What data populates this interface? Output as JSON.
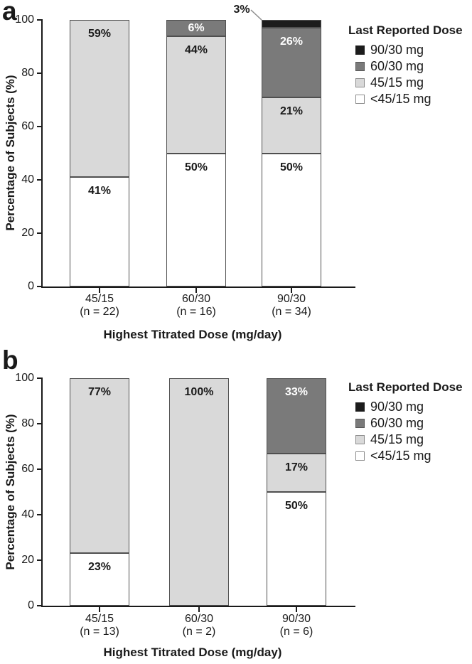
{
  "figure": {
    "background": "#ffffff",
    "axis_color": "#1a1a1a",
    "panels": [
      {
        "panel_label": "a",
        "ylabel": "Percentage of Subjects (%)",
        "xlabel": "Highest Titrated Dose (mg/day)",
        "legend_title": "Last Reported Dose"
      },
      {
        "panel_label": "b",
        "ylabel": "Percentage of Subjects (%)",
        "xlabel": "Highest Titrated Dose (mg/day)",
        "legend_title": "Last Reported Dose"
      }
    ],
    "legend_items": [
      {
        "label": "90/30 mg",
        "color": "#1c1c1c",
        "border": "#1c1c1c"
      },
      {
        "label": "60/30 mg",
        "color": "#7a7a7a",
        "border": "#565656"
      },
      {
        "label": "45/15 mg",
        "color": "#d9d9d9",
        "border": "#8c8c8c"
      },
      {
        "label": "<45/15 mg",
        "color": "#ffffff",
        "border": "#8c8c8c"
      }
    ]
  },
  "chart_data": [
    {
      "type": "bar",
      "stacked": true,
      "panel": "a",
      "title": "",
      "xlabel": "Highest Titrated Dose (mg/day)",
      "ylabel": "Percentage of Subjects (%)",
      "ylim": [
        0,
        100
      ],
      "yticks": [
        0,
        20,
        40,
        60,
        80,
        100
      ],
      "grid": false,
      "legend_title": "Last Reported Dose",
      "legend_position": "top-right",
      "categories": [
        "45/15",
        "60/30",
        "90/30"
      ],
      "category_counts": [
        "(n = 22)",
        "(n = 16)",
        "(n = 34)"
      ],
      "series": [
        {
          "name": "<45/15 mg",
          "color": "#ffffff",
          "label_color": "#1a1a1a",
          "values": [
            41,
            50,
            50
          ]
        },
        {
          "name": "45/15 mg",
          "color": "#d9d9d9",
          "label_color": "#1a1a1a",
          "values": [
            59,
            44,
            21
          ]
        },
        {
          "name": "60/30 mg",
          "color": "#7a7a7a",
          "label_color": "#ffffff",
          "values": [
            0,
            6,
            26
          ]
        },
        {
          "name": "90/30 mg",
          "color": "#1c1c1c",
          "label_color": "#ffffff",
          "values": [
            0,
            0,
            3
          ]
        }
      ],
      "annotations": [
        {
          "text": "3%",
          "category_index": 2,
          "series_index": 3
        }
      ]
    },
    {
      "type": "bar",
      "stacked": true,
      "panel": "b",
      "title": "",
      "xlabel": "Highest Titrated Dose (mg/day)",
      "ylabel": "Percentage of Subjects (%)",
      "ylim": [
        0,
        100
      ],
      "yticks": [
        0,
        20,
        40,
        60,
        80,
        100
      ],
      "grid": false,
      "legend_title": "Last Reported Dose",
      "legend_position": "top-right",
      "categories": [
        "45/15",
        "60/30",
        "90/30"
      ],
      "category_counts": [
        "(n = 13)",
        "(n = 2)",
        "(n = 6)"
      ],
      "series": [
        {
          "name": "<45/15 mg",
          "color": "#ffffff",
          "label_color": "#1a1a1a",
          "values": [
            23,
            0,
            50
          ]
        },
        {
          "name": "45/15 mg",
          "color": "#d9d9d9",
          "label_color": "#1a1a1a",
          "values": [
            77,
            100,
            17
          ]
        },
        {
          "name": "60/30 mg",
          "color": "#7a7a7a",
          "label_color": "#ffffff",
          "values": [
            0,
            0,
            33
          ]
        },
        {
          "name": "90/30 mg",
          "color": "#1c1c1c",
          "label_color": "#ffffff",
          "values": [
            0,
            0,
            0
          ]
        }
      ],
      "annotations": []
    }
  ]
}
